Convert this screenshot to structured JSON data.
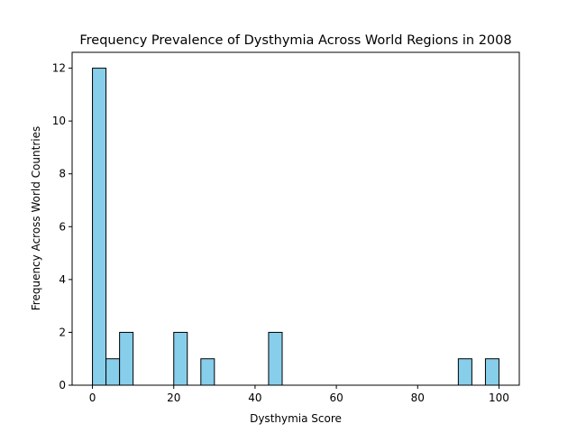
{
  "chart_data": {
    "type": "bar",
    "title": "Frequency Prevalence of Dysthymia Across World Regions in 2008",
    "xlabel": "Dysthymia Score",
    "ylabel": "Frequency Across World Countries",
    "xlim": [
      -5,
      105
    ],
    "ylim": [
      0,
      12.6
    ],
    "xticks": [
      0,
      20,
      40,
      60,
      80,
      100
    ],
    "yticks": [
      0,
      2,
      4,
      6,
      8,
      10,
      12
    ],
    "grid": false,
    "bar_color": "#87CEEB",
    "edge_color": "#000000",
    "bin_width": 3.33,
    "bins": [
      {
        "start": 0.0,
        "end": 3.33,
        "count": 12
      },
      {
        "start": 3.33,
        "end": 6.67,
        "count": 1
      },
      {
        "start": 6.67,
        "end": 10.0,
        "count": 2
      },
      {
        "start": 20.0,
        "end": 23.33,
        "count": 2
      },
      {
        "start": 26.67,
        "end": 30.0,
        "count": 1
      },
      {
        "start": 43.33,
        "end": 46.67,
        "count": 2
      },
      {
        "start": 90.0,
        "end": 93.33,
        "count": 1
      },
      {
        "start": 96.67,
        "end": 100.0,
        "count": 1
      }
    ]
  }
}
